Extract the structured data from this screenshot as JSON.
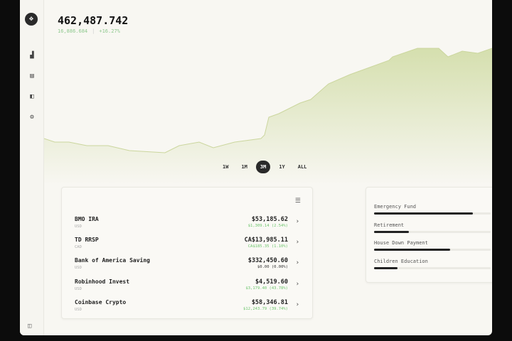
{
  "sidebar": {
    "items": [
      {
        "icon": "bar-chart-icon",
        "glyph": "▟"
      },
      {
        "icon": "card-icon",
        "glyph": "▤"
      },
      {
        "icon": "book-icon",
        "glyph": "◧"
      },
      {
        "icon": "gear-icon",
        "glyph": "⚙"
      }
    ],
    "logo_glyph": "✥",
    "footer_glyph": "◫"
  },
  "summary": {
    "total": "462,487.742",
    "change": "16,886.684",
    "separator": "|",
    "change_pct": "+16.27%"
  },
  "periods": [
    {
      "label": "1W"
    },
    {
      "label": "1M"
    },
    {
      "label": "3M",
      "active": true
    },
    {
      "label": "1Y"
    },
    {
      "label": "ALL"
    }
  ],
  "colors": {
    "accent_fill": "#dfe6c2",
    "positive": "#6cc56c",
    "dark": "#2a2a2a"
  },
  "chart_data": {
    "type": "area",
    "grid": false,
    "values": [
      443060,
      442295,
      442295,
      441530,
      441530,
      440459,
      440000,
      441530,
      442295,
      441071,
      442295,
      443060,
      443825,
      447650,
      448415,
      450710,
      451475,
      454841,
      456830,
      459890,
      460655,
      462491,
      462491,
      460655,
      461879,
      461420,
      462488
    ]
  },
  "accounts": {
    "menu_glyph": "☰",
    "rows": [
      {
        "name": "BMO IRA",
        "currency": "USD",
        "balance": "$53,185.62",
        "change": "$1,309.14 (2.54%)"
      },
      {
        "name": "TD RRSP",
        "currency": "CAD",
        "balance": "CA$13,985.11",
        "change": "CA$185.35 (1.10%)"
      },
      {
        "name": "Bank of America Saving",
        "currency": "USD",
        "balance": "$332,450.60",
        "change": "$0.00 (0.00%)",
        "zero": true
      },
      {
        "name": "Robinhood Invest",
        "currency": "USD",
        "balance": "$4,519.60",
        "change": "$3,179.40 (43.78%)"
      },
      {
        "name": "Coinbase Crypto",
        "currency": "USD",
        "balance": "$58,346.81",
        "change": "$12,243.79 (39.74%)"
      }
    ]
  },
  "goals": [
    {
      "label": "Emergency Fund",
      "progress": 0.85
    },
    {
      "label": "Retirement",
      "progress": 0.3
    },
    {
      "label": "House Down Payment",
      "progress": 0.65
    },
    {
      "label": "Children Education",
      "progress": 0.2
    }
  ]
}
